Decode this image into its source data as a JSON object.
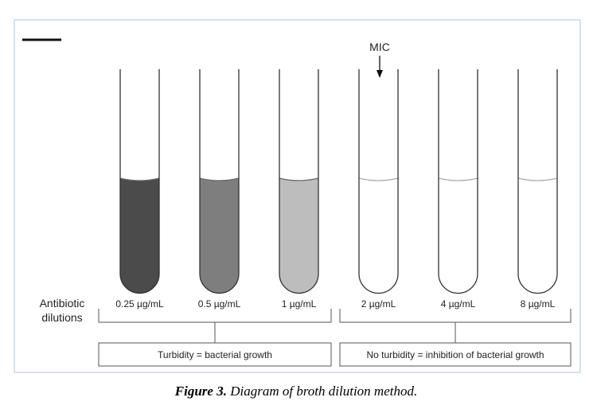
{
  "figure": {
    "mic_label": "MIC",
    "row_label_line1": "Antibiotic",
    "row_label_line2": "dilutions",
    "tubes": [
      {
        "concentration": "0.25 µg/mL",
        "color": "#4b4b4b",
        "turbid": true
      },
      {
        "concentration": "0.5 µg/mL",
        "color": "#7e7e7e",
        "turbid": true
      },
      {
        "concentration": "1 µg/mL",
        "color": "#bdbdbd",
        "turbid": true
      },
      {
        "concentration": "2 µg/mL",
        "color": "#ffffff",
        "turbid": false
      },
      {
        "concentration": "4 µg/mL",
        "color": "#ffffff",
        "turbid": false
      },
      {
        "concentration": "8 µg/mL",
        "color": "#ffffff",
        "turbid": false
      }
    ],
    "group_left": "Turbidity = bacterial growth",
    "group_right": "No turbidity = inhibition of bacterial growth"
  },
  "caption": {
    "prefix": "Figure 3.",
    "text": " Diagram of broth dilution method."
  }
}
